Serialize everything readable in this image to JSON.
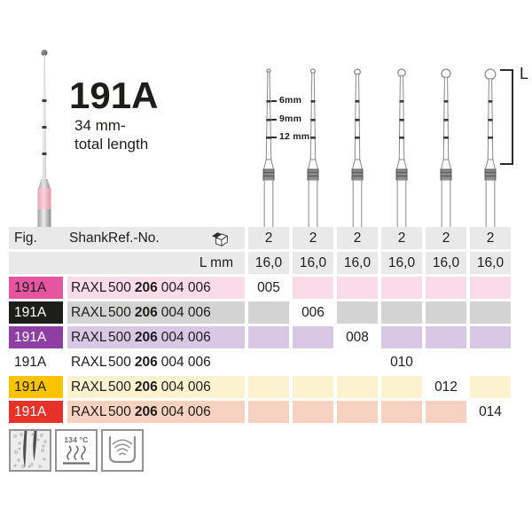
{
  "page": {
    "title": "191A",
    "subtitle_line1": "34 mm-",
    "subtitle_line2": "total length"
  },
  "diagram": {
    "depth_marks": [
      "6mm",
      "9mm",
      "12 mm"
    ],
    "length_label": "L"
  },
  "table": {
    "headers": {
      "fig": "Fig.",
      "shank": "Shank",
      "ref": "Ref.-No."
    },
    "size_header": [
      "2",
      "2",
      "2",
      "2",
      "2",
      "2"
    ],
    "subheader_label": "L mm",
    "subheader_values": [
      "16,0",
      "16,0",
      "16,0",
      "16,0",
      "16,0",
      "16,0"
    ],
    "header_bg": "#e9e9e9",
    "rows": [
      {
        "fig": "191A",
        "shank": "RAXL",
        "ref": [
          "500",
          "206",
          "004 006"
        ],
        "size_col": 1,
        "size": "005",
        "label_bg": "#e6559f",
        "label_fg": "#1d1d1b",
        "fill": "#fadce9"
      },
      {
        "fig": "191A",
        "shank": "RAXL",
        "ref": [
          "500",
          "206",
          "004 006"
        ],
        "size_col": 2,
        "size": "006",
        "label_bg": "#1d1d1b",
        "label_fg": "#ffffff",
        "fill": "#d3d3d3"
      },
      {
        "fig": "191A",
        "shank": "RAXL",
        "ref": [
          "500",
          "206",
          "004 006"
        ],
        "size_col": 3,
        "size": "008",
        "label_bg": "#8f3fa3",
        "label_fg": "#ffffff",
        "fill": "#d8c8e5"
      },
      {
        "fig": "191A",
        "shank": "RAXL",
        "ref": [
          "500",
          "206",
          "004 006"
        ],
        "size_col": 4,
        "size": "010",
        "label_bg": "",
        "label_fg": "#1d1d1b",
        "fill": ""
      },
      {
        "fig": "191A",
        "shank": "RAXL",
        "ref": [
          "500",
          "206",
          "004 006"
        ],
        "size_col": 5,
        "size": "012",
        "label_bg": "#fcc400",
        "label_fg": "#1d1d1b",
        "fill": "#fcf2d0"
      },
      {
        "fig": "191A",
        "shank": "RAXL",
        "ref": [
          "500",
          "206",
          "004 006"
        ],
        "size_col": 6,
        "size": "014",
        "label_bg": "#e63228",
        "label_fg": "#ffffff",
        "fill": "#f8d2c0"
      }
    ]
  },
  "footer": {
    "autoclave_label": "134 °C",
    "icons": [
      "root-canal-icon",
      "autoclave-icon",
      "ultrasonic-icon"
    ]
  }
}
